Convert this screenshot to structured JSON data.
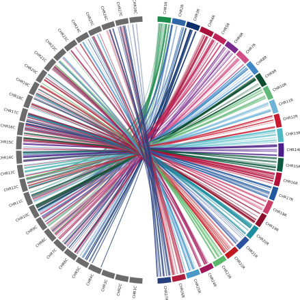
{
  "diagram": {
    "title": "",
    "left_arc_color": "#6b6b6b",
    "left_segments": [
      "CHR1C",
      "CHR2C",
      "CHR3C",
      "CHR4C",
      "CHR5C",
      "CHR6C",
      "CHR7C",
      "CHR8C",
      "CHR9C",
      "CHR10C",
      "CHR11C",
      "CHR12C",
      "CHR13C",
      "CHR14C",
      "CHR15C",
      "CHR16C",
      "CHR17C",
      "CHR18C",
      "CHR19C",
      "CHR20C",
      "CHR21C",
      "CHR22C",
      "CHR23C",
      "CHR24C",
      "CHR25C",
      "CHR26C",
      "CHR27C",
      "CHR28C"
    ],
    "right_segments": [
      {
        "label": "CHR1R",
        "color": "#1b8a4a"
      },
      {
        "label": "CHR2R",
        "color": "#2f66a8"
      },
      {
        "label": "CHR3R",
        "color": "#0d2f6b"
      },
      {
        "label": "CHR4R",
        "color": "#a8123a"
      },
      {
        "label": "CHR5R",
        "color": "#c0245a"
      },
      {
        "label": "CHR6R",
        "color": "#7a2a8c"
      },
      {
        "label": "CHR7R",
        "color": "#d04f86"
      },
      {
        "label": "CHR8R",
        "color": "#3f86c4"
      },
      {
        "label": "CHR9R",
        "color": "#0b4d2e"
      },
      {
        "label": "CHR10R",
        "color": "#62b878"
      },
      {
        "label": "CHR11R",
        "color": "#6fb3d6"
      },
      {
        "label": "CHR12R",
        "color": "#c8192e"
      },
      {
        "label": "CHR13R",
        "color": "#4fb9c6"
      },
      {
        "label": "CHR14R",
        "color": "#4b1f8a"
      },
      {
        "label": "CHR15R",
        "color": "#0f5a3e"
      },
      {
        "label": "CHR16R",
        "color": "#b2103a"
      },
      {
        "label": "CHR17R",
        "color": "#24589e"
      },
      {
        "label": "CHR18R",
        "color": "#c93f69"
      },
      {
        "label": "CHR19R",
        "color": "#8c0f2b"
      },
      {
        "label": "CHR20R",
        "color": "#1d8ea0"
      },
      {
        "label": "CHR21R",
        "color": "#2c4f9e"
      },
      {
        "label": "CHR22R",
        "color": "#c2181f"
      },
      {
        "label": "CHR23R",
        "color": "#5bb86a"
      },
      {
        "label": "CHR24R",
        "color": "#a0175a"
      },
      {
        "label": "CHR25R",
        "color": "#4a99c9"
      },
      {
        "label": "CHR26R",
        "color": "#b01e3c"
      },
      {
        "label": "CHR27R",
        "color": "#27407f"
      }
    ]
  }
}
